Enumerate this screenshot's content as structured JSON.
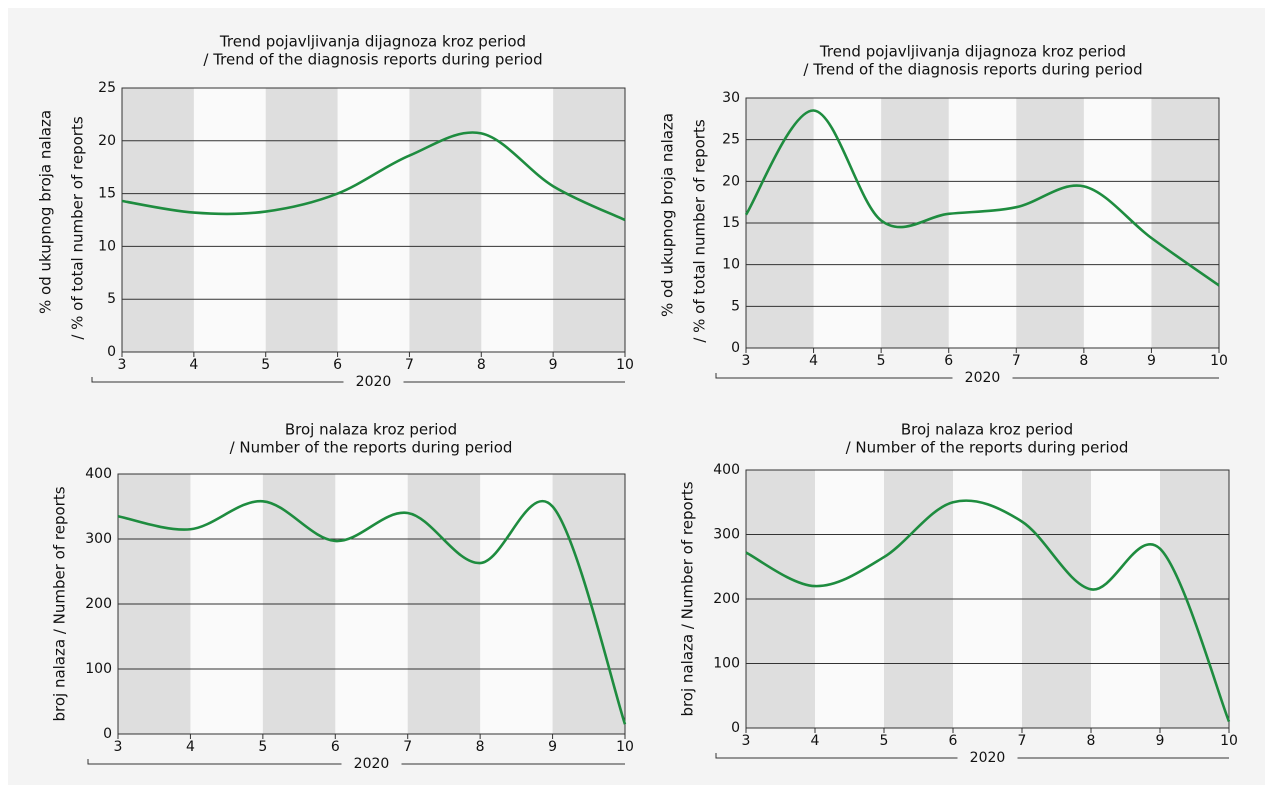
{
  "chart_data": [
    {
      "type": "line",
      "title": [
        "Trend pojavljivanja dijagnoza kroz period",
        "/ Trend of the diagnosis reports during period"
      ],
      "ylabel": [
        "% od ukupnog broja nalaza",
        "/ % of total number of reports"
      ],
      "xlabel": "2020",
      "x": [
        3,
        4,
        5,
        6,
        7,
        8,
        9,
        10
      ],
      "xlim": [
        3,
        10
      ],
      "xticks": [
        3,
        4,
        5,
        6,
        7,
        8,
        9,
        10
      ],
      "ylim": [
        0,
        25
      ],
      "yticks": [
        0,
        5,
        10,
        15,
        20,
        25
      ],
      "grid": true,
      "series": [
        {
          "color": "#1e8c3f",
          "values": [
            14.3,
            13.2,
            13.3,
            15,
            18.6,
            20.7,
            15.7,
            12.5
          ]
        }
      ]
    },
    {
      "type": "line",
      "title": [
        "Trend pojavljivanja dijagnoza kroz period",
        "/ Trend of the diagnosis reports during period"
      ],
      "ylabel": [
        "% od ukupnog broja nalaza",
        "/ % of total number of reports"
      ],
      "xlabel": "2020",
      "x": [
        3,
        4,
        5,
        6,
        7,
        8,
        9,
        10
      ],
      "xlim": [
        3,
        10
      ],
      "xticks": [
        3,
        4,
        5,
        6,
        7,
        8,
        9,
        10
      ],
      "ylim": [
        0,
        30
      ],
      "yticks": [
        0,
        5,
        10,
        15,
        20,
        25,
        30
      ],
      "grid": true,
      "series": [
        {
          "color": "#1e8c3f",
          "values": [
            16,
            28.5,
            15.3,
            16.1,
            16.9,
            19.4,
            13.2,
            7.5
          ]
        }
      ]
    },
    {
      "type": "line",
      "title": [
        "Broj nalaza kroz period",
        "/ Number of the reports during period"
      ],
      "ylabel": [
        "broj nalaza / Number of reports"
      ],
      "xlabel": "2020",
      "x": [
        3,
        4,
        5,
        6,
        7,
        8,
        9,
        10
      ],
      "xlim": [
        3,
        10
      ],
      "xticks": [
        3,
        4,
        5,
        6,
        7,
        8,
        9,
        10
      ],
      "ylim": [
        0,
        400
      ],
      "yticks": [
        0,
        100,
        200,
        300,
        400
      ],
      "grid": true,
      "series": [
        {
          "color": "#1e8c3f",
          "values": [
            335,
            315,
            358,
            297,
            340,
            263,
            350,
            15
          ]
        }
      ]
    },
    {
      "type": "line",
      "title": [
        "Broj nalaza kroz period",
        "/ Number of the reports during period"
      ],
      "ylabel": [
        "broj nalaza / Number of reports"
      ],
      "xlabel": "2020",
      "x": [
        3,
        4,
        5,
        6,
        7,
        8,
        9,
        10
      ],
      "xlim": [
        3,
        10
      ],
      "xticks": [
        3,
        4,
        5,
        6,
        7,
        8,
        9,
        10
      ],
      "ylim": [
        0,
        400
      ],
      "yticks": [
        0,
        100,
        200,
        300,
        400
      ],
      "grid": true,
      "series": [
        {
          "color": "#1e8c3f",
          "values": [
            272,
            220,
            265,
            350,
            320,
            215,
            278,
            10
          ]
        }
      ]
    }
  ]
}
